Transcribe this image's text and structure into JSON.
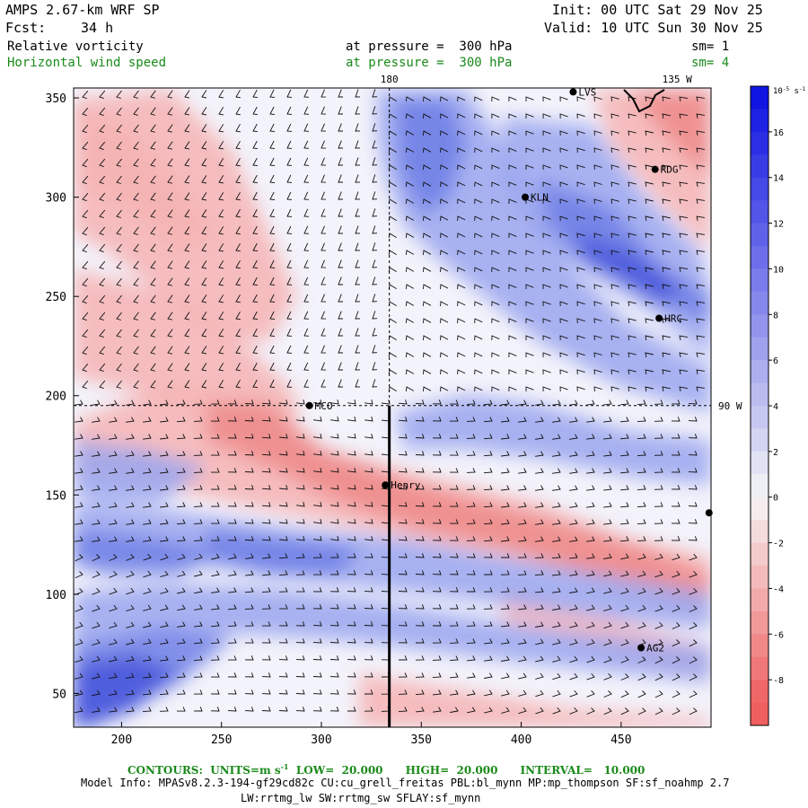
{
  "header": {
    "model": "AMPS 2.67-km WRF SP",
    "forecast_label": "Fcst:",
    "forecast_hours": "34 h",
    "init": "Init: 00 UTC Sat 29 Nov 25",
    "valid": "Valid: 10 UTC Sun 30 Nov 25"
  },
  "fields": [
    {
      "name": "Relative vorticity",
      "level_text": "at pressure =  300 hPa",
      "smooth": "sm= 1",
      "color": "#000000"
    },
    {
      "name": "Horizontal wind speed",
      "level_text": "at pressure =  300 hPa",
      "smooth": "sm= 4",
      "color": "#1a8a1a"
    }
  ],
  "map": {
    "x_ticks": [
      200,
      250,
      300,
      350,
      400,
      450
    ],
    "y_ticks": [
      50,
      100,
      150,
      200,
      250,
      300,
      350
    ],
    "x_range": [
      176,
      495
    ],
    "y_range": [
      33,
      355
    ],
    "lon_labels": [
      {
        "text": "180",
        "x": 334,
        "y": 355
      },
      {
        "text": "135 W",
        "x": 478,
        "y": 355
      },
      {
        "text": "90 W",
        "x": 495,
        "y": 195
      }
    ],
    "stations": [
      {
        "name": "LVS",
        "x": 426,
        "y": 353
      },
      {
        "name": "RDG",
        "x": 467,
        "y": 314
      },
      {
        "name": "KLN",
        "x": 402,
        "y": 300
      },
      {
        "name": "HRC",
        "x": 469,
        "y": 239
      },
      {
        "name": "MCO",
        "x": 294,
        "y": 195
      },
      {
        "name": "Henry",
        "x": 332,
        "y": 155
      },
      {
        "name": "",
        "x": 494,
        "y": 141
      },
      {
        "name": "AG2",
        "x": 460,
        "y": 73
      }
    ]
  },
  "colorbar": {
    "unit": "10",
    "unit_suffix": "s",
    "exponent": "-5",
    "exponent2": "-1",
    "labels": [
      "16",
      "14",
      "12",
      "10",
      "8",
      "6",
      "4",
      "2",
      "0",
      "-2",
      "-4",
      "-6",
      "-8"
    ],
    "values": [
      16,
      14,
      12,
      10,
      8,
      6,
      4,
      2,
      0,
      -2,
      -4,
      -6,
      -8
    ]
  },
  "footer": {
    "contours": "CONTOURS:  UNITS=m s",
    "contours_exp": "-1",
    "contours_rest": "  LOW=  20.000      HIGH=  20.000      INTERVAL=   10.000",
    "model_info": "Model Info: MPASv8.2.3-194-gf29cd82c CU:cu_grell_freitas PBL:bl_mynn MP:mp_thompson SF:sf_noahmp 2.7",
    "model_info2": "LW:rrtmg_lw SW:rrtmg_sw SFLAY:sf_mynn"
  },
  "colors": {
    "positive": "#1a2bd9",
    "negative": "#f04848",
    "neutral": "#ffffff",
    "header_green": "#1a8a1a"
  }
}
